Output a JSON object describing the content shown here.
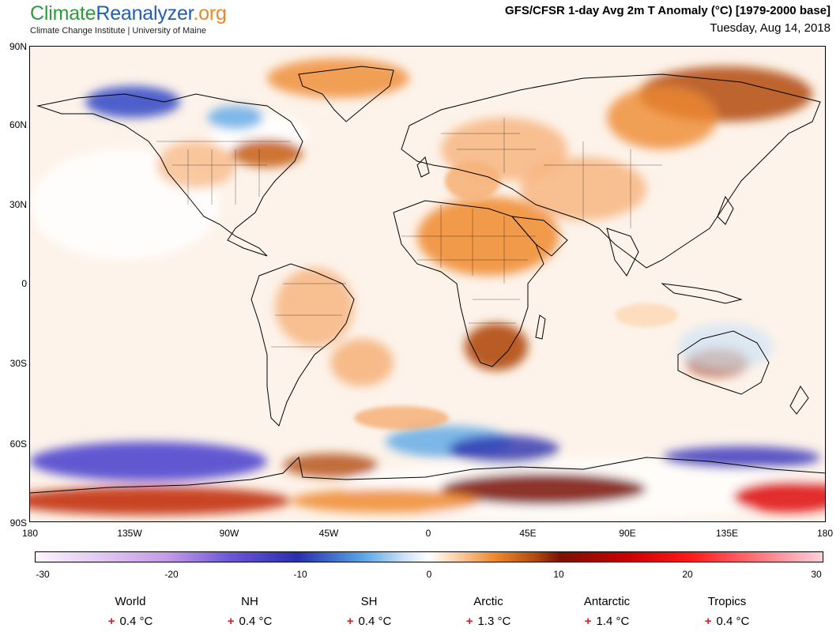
{
  "brand": {
    "logo_part1": "Climate",
    "logo_part2": "Reanalyzer",
    "logo_part3": ".org",
    "subtitle": "Climate Change Institute | University of Maine"
  },
  "header": {
    "title": "GFS/CFSR 1-day Avg 2m T Anomaly (°C) [1979-2000 base]",
    "date": "Tuesday, Aug 14, 2018"
  },
  "axes": {
    "lat_labels": [
      "90N",
      "60N",
      "30N",
      "0",
      "30S",
      "60S",
      "90S"
    ],
    "lon_labels": [
      "180",
      "135W",
      "90W",
      "45W",
      "0",
      "45E",
      "90E",
      "135E",
      "180"
    ]
  },
  "colorbar": {
    "labels": [
      "-30",
      "-20",
      "-10",
      "0",
      "10",
      "20",
      "30"
    ],
    "colors": {
      "m30": "#fdf4fb",
      "m20": "#c49be8",
      "m15": "#6a55d6",
      "m10": "#2a2fae",
      "m5": "#5aa7e6",
      "m2": "#cfe3f7",
      "zero": "#ffffff",
      "p2": "#fbd7b3",
      "p5": "#ee8a2f",
      "p8": "#b14a10",
      "p10": "#7a1205",
      "p15": "#c80000",
      "p20": "#ff1a1a",
      "p30": "#fdd0dc"
    }
  },
  "stats": [
    {
      "name": "World",
      "sign": "+",
      "value": "0.4 °C"
    },
    {
      "name": "NH",
      "sign": "+",
      "value": "0.4 °C"
    },
    {
      "name": "SH",
      "sign": "+",
      "value": "0.4 °C"
    },
    {
      "name": "Arctic",
      "sign": "+",
      "value": "1.3 °C"
    },
    {
      "name": "Antarctic",
      "sign": "+",
      "value": "1.4 °C"
    },
    {
      "name": "Tropics",
      "sign": "+",
      "value": "0.4 °C"
    }
  ]
}
